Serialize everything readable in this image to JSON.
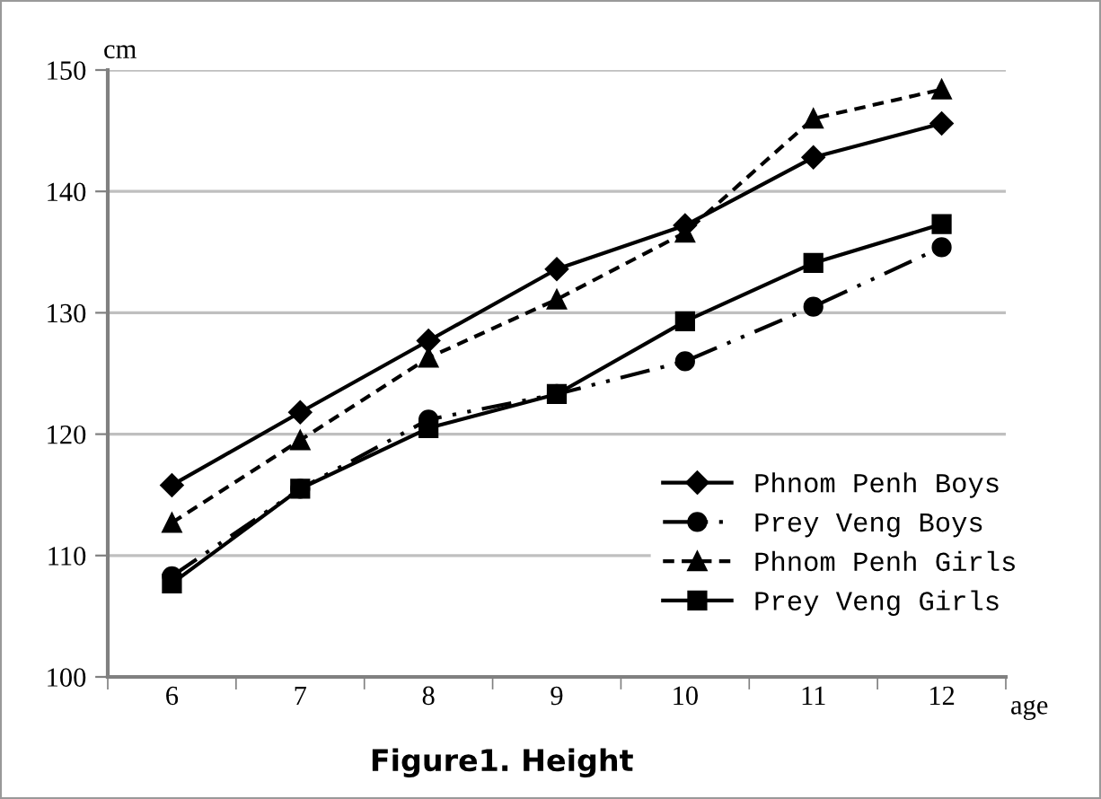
{
  "chart_data": {
    "type": "line",
    "title": "Figure1. Height",
    "xlabel": "age",
    "ylabel": "cm",
    "categories": [
      "6",
      "7",
      "8",
      "9",
      "10",
      "11",
      "12"
    ],
    "series": [
      {
        "name": "Phnom Penh Boys",
        "color": "#000000",
        "marker": "diamond",
        "line_style": "solid",
        "values": [
          115.8,
          121.8,
          127.7,
          133.6,
          137.2,
          142.8,
          145.6
        ]
      },
      {
        "name": "Prey Veng Boys",
        "color": "#000000",
        "marker": "circle",
        "line_style": "dashdot",
        "values": [
          108.3,
          115.5,
          121.2,
          123.3,
          126.0,
          130.5,
          135.4
        ]
      },
      {
        "name": "Phnom Penh Girls",
        "color": "#000000",
        "marker": "triangle",
        "line_style": "dashed",
        "values": [
          112.7,
          119.5,
          126.3,
          131.1,
          136.6,
          146.0,
          148.4
        ]
      },
      {
        "name": "Prey Veng Girls",
        "color": "#000000",
        "marker": "square",
        "line_style": "solid",
        "values": [
          107.7,
          115.5,
          120.5,
          123.3,
          129.3,
          134.1,
          137.3
        ]
      }
    ],
    "ylim": [
      100,
      150
    ],
    "yticks": [
      100,
      110,
      120,
      130,
      140,
      150
    ],
    "grid": "y",
    "legend": "bottom right"
  }
}
